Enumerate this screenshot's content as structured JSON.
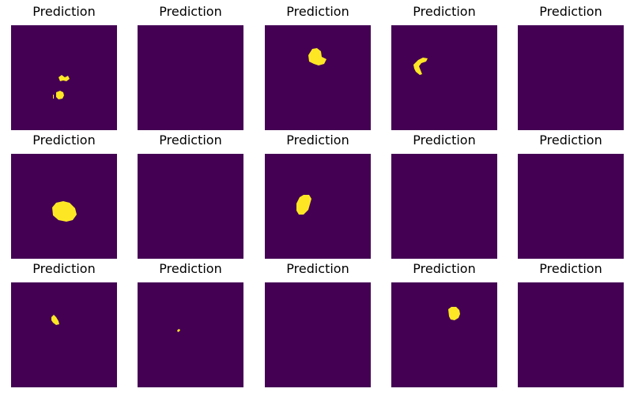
{
  "figure": {
    "panels": [
      {
        "title": "Prediction",
        "mask": "two small irregular yellow blobs in upper-left-center region"
      },
      {
        "title": "Prediction",
        "mask": "empty"
      },
      {
        "title": "Prediction",
        "mask": "one irregular yellow blob in upper-center"
      },
      {
        "title": "Prediction",
        "mask": "one small yellow blob in upper-left"
      },
      {
        "title": "Prediction",
        "mask": "empty"
      },
      {
        "title": "Prediction",
        "mask": "one large yellow blob in center-left"
      },
      {
        "title": "Prediction",
        "mask": "empty"
      },
      {
        "title": "Prediction",
        "mask": "one yellow blob in center-left"
      },
      {
        "title": "Prediction",
        "mask": "empty"
      },
      {
        "title": "Prediction",
        "mask": "empty"
      },
      {
        "title": "Prediction",
        "mask": "one small yellow blob in left-center"
      },
      {
        "title": "Prediction",
        "mask": "tiny yellow speck near center"
      },
      {
        "title": "Prediction",
        "mask": "empty"
      },
      {
        "title": "Prediction",
        "mask": "one small yellow blob in upper-center"
      },
      {
        "title": "Prediction",
        "mask": "empty"
      }
    ],
    "colors": {
      "background": "#440154",
      "mask": "#fde725"
    }
  }
}
